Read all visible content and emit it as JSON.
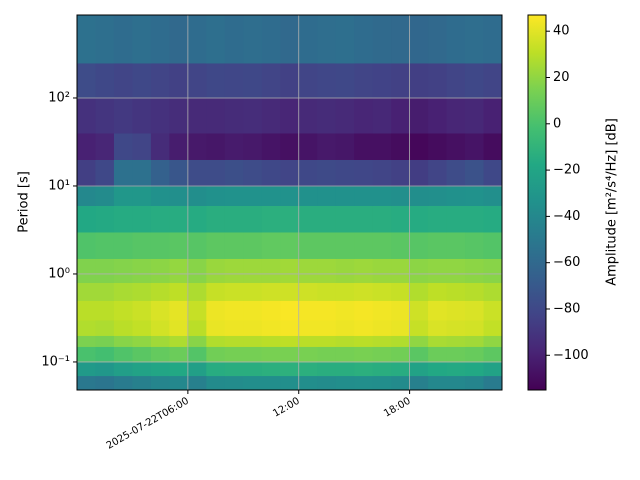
{
  "chart_data": {
    "type": "heatmap",
    "ylabel": "Period [s]",
    "colorbar_label": "Amplitude [m²/s⁴/Hz] [dB]",
    "colormap": "viridis",
    "log_y": true,
    "grid": true,
    "xlim": [
      0,
      23
    ],
    "xticks": [
      {
        "value": 6,
        "label": "2025-07-22T06:00"
      },
      {
        "value": 12,
        "label": "12:00"
      },
      {
        "value": 18,
        "label": "18:00"
      }
    ],
    "ylim": [
      0.048,
      877
    ],
    "yticks": [
      {
        "value": 0.1,
        "label": "10⁻¹"
      },
      {
        "value": 1,
        "label": "10⁰"
      },
      {
        "value": 10,
        "label": "10¹"
      },
      {
        "value": 100,
        "label": "10²"
      }
    ],
    "clim": [
      -115,
      47
    ],
    "cticks": [
      {
        "value": -100,
        "label": "−100"
      },
      {
        "value": -80,
        "label": "−80"
      },
      {
        "value": -60,
        "label": "−60"
      },
      {
        "value": -40,
        "label": "−40"
      },
      {
        "value": -20,
        "label": "−20"
      },
      0,
      20,
      40
    ],
    "x_bins": [
      0,
      1,
      2,
      3,
      4,
      5,
      6,
      7,
      8,
      9,
      10,
      11,
      12,
      13,
      14,
      15,
      16,
      17,
      18,
      19,
      20,
      21,
      22,
      23
    ],
    "y_bins": [
      0.048,
      0.07,
      0.1,
      0.15,
      0.2,
      0.3,
      0.5,
      0.8,
      1.5,
      3,
      6,
      10,
      20,
      40,
      100,
      250,
      877
    ],
    "values": [
      [
        -50,
        -52,
        -48,
        -45,
        -42,
        -40,
        -45,
        -38,
        -37,
        -36,
        -36,
        -35,
        -36,
        -37,
        -36,
        -35,
        -36,
        -38,
        -45,
        -40,
        -40,
        -42,
        -48
      ],
      [
        -28,
        -30,
        -25,
        -22,
        -20,
        -18,
        -24,
        -15,
        -14,
        -14,
        -13,
        -12,
        -13,
        -14,
        -14,
        -13,
        -14,
        -15,
        -22,
        -18,
        -17,
        -18,
        -22
      ],
      [
        0,
        -2,
        2,
        5,
        8,
        10,
        3,
        12,
        13,
        13,
        14,
        14,
        14,
        13,
        13,
        14,
        13,
        12,
        5,
        10,
        10,
        9,
        6
      ],
      [
        15,
        14,
        18,
        20,
        24,
        27,
        18,
        28,
        29,
        29,
        30,
        31,
        30,
        30,
        29,
        30,
        29,
        28,
        20,
        26,
        25,
        24,
        20
      ],
      [
        28,
        27,
        30,
        32,
        36,
        40,
        30,
        42,
        43,
        43,
        44,
        45,
        44,
        44,
        43,
        44,
        43,
        42,
        33,
        38,
        37,
        36,
        32
      ],
      [
        30,
        30,
        32,
        34,
        38,
        41,
        33,
        43,
        44,
        44,
        45,
        46,
        45,
        45,
        44,
        45,
        44,
        43,
        35,
        40,
        39,
        38,
        34
      ],
      [
        24,
        24,
        26,
        27,
        29,
        31,
        27,
        33,
        34,
        34,
        35,
        35,
        35,
        34,
        34,
        35,
        34,
        33,
        28,
        31,
        30,
        29,
        27
      ],
      [
        16,
        16,
        17,
        18,
        19,
        21,
        18,
        22,
        23,
        23,
        23,
        24,
        23,
        23,
        22,
        23,
        22,
        22,
        19,
        20,
        20,
        19,
        18
      ],
      [
        2,
        3,
        3,
        4,
        4,
        5,
        4,
        6,
        6,
        6,
        7,
        7,
        6,
        6,
        6,
        6,
        6,
        5,
        4,
        5,
        5,
        4,
        3
      ],
      [
        -18,
        -17,
        -16,
        -16,
        -15,
        -15,
        -16,
        -14,
        -14,
        -14,
        -13,
        -13,
        -14,
        -14,
        -14,
        -14,
        -14,
        -15,
        -16,
        -15,
        -15,
        -15,
        -16
      ],
      [
        -40,
        -38,
        -30,
        -30,
        -34,
        -35,
        -36,
        -34,
        -33,
        -33,
        -33,
        -33,
        -34,
        -34,
        -34,
        -34,
        -34,
        -35,
        -36,
        -35,
        -34,
        -33,
        -35
      ],
      [
        -85,
        -80,
        -55,
        -55,
        -65,
        -72,
        -78,
        -78,
        -76,
        -78,
        -80,
        -82,
        -80,
        -79,
        -80,
        -81,
        -82,
        -84,
        -86,
        -82,
        -78,
        -74,
        -80
      ],
      [
        -100,
        -98,
        -80,
        -82,
        -95,
        -102,
        -104,
        -105,
        -103,
        -104,
        -106,
        -108,
        -106,
        -104,
        -105,
        -108,
        -108,
        -110,
        -112,
        -110,
        -108,
        -106,
        -110
      ],
      [
        -92,
        -90,
        -88,
        -90,
        -92,
        -94,
        -96,
        -96,
        -95,
        -94,
        -96,
        -98,
        -96,
        -95,
        -96,
        -98,
        -97,
        -100,
        -102,
        -100,
        -98,
        -97,
        -100
      ],
      [
        -78,
        -80,
        -82,
        -80,
        -82,
        -84,
        -82,
        -80,
        -81,
        -80,
        -82,
        -84,
        -82,
        -81,
        -80,
        -82,
        -83,
        -84,
        -85,
        -84,
        -82,
        -80,
        -82
      ],
      [
        -55,
        -56,
        -58,
        -56,
        -58,
        -60,
        -58,
        -56,
        -58,
        -57,
        -58,
        -60,
        -58,
        -57,
        -56,
        -58,
        -59,
        -60,
        -61,
        -60,
        -58,
        -57,
        -58
      ]
    ]
  }
}
